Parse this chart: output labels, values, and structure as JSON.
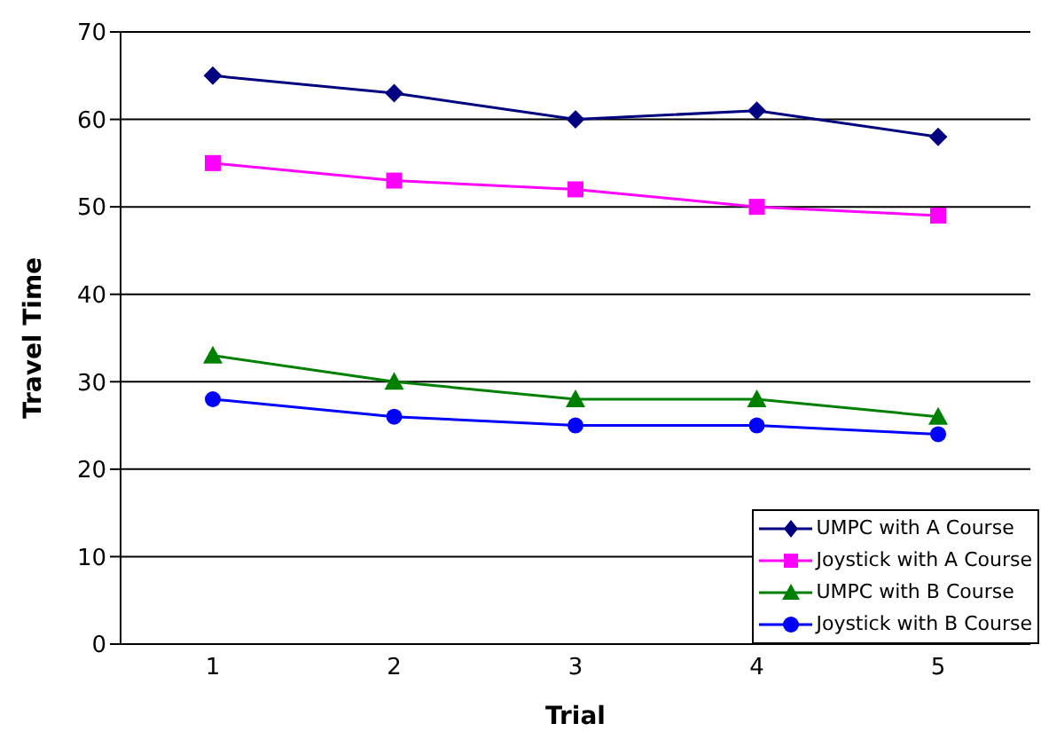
{
  "chart_data": {
    "type": "line",
    "xlabel": "Trial",
    "ylabel": "Travel Time",
    "categories": [
      "1",
      "2",
      "3",
      "4",
      "5"
    ],
    "ylim": [
      0,
      70
    ],
    "yticks": [
      0,
      10,
      20,
      30,
      40,
      50,
      60,
      70
    ],
    "grid": "y",
    "legend": "bottom right",
    "line_style": "solid",
    "series": [
      {
        "name": "UMPC with A Course",
        "color": "#000080",
        "marker": "diamond",
        "values": [
          65,
          63,
          60,
          61,
          58
        ]
      },
      {
        "name": "Joystick with A Course",
        "color": "#ff00ff",
        "marker": "square",
        "values": [
          55,
          53,
          52,
          50,
          49
        ]
      },
      {
        "name": "UMPC with B Course",
        "color": "#008000",
        "marker": "triangle",
        "values": [
          33,
          30,
          28,
          28,
          26
        ]
      },
      {
        "name": "Joystick with B Course",
        "color": "#0000ff",
        "marker": "circle",
        "values": [
          28,
          26,
          25,
          25,
          24
        ]
      }
    ]
  }
}
